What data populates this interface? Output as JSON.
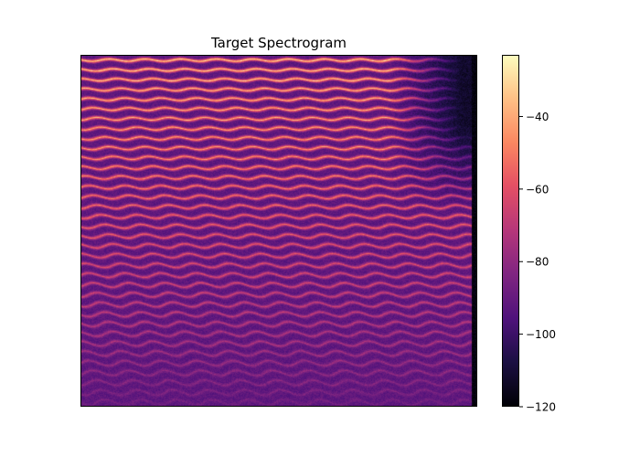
{
  "chart_data": {
    "type": "heatmap",
    "title": "Target Spectrogram",
    "xlabel": "",
    "ylabel": "",
    "colormap": "magma",
    "colorbar": {
      "range": [
        -120,
        -23
      ],
      "ticks": [
        {
          "value": -40,
          "label": "−40"
        },
        {
          "value": -60,
          "label": "−60"
        },
        {
          "value": -80,
          "label": "−80"
        },
        {
          "value": -100,
          "label": "−100"
        },
        {
          "value": -120,
          "label": "−120"
        }
      ]
    },
    "x_ticks_shown": false,
    "y_ticks_shown": false,
    "grid": false,
    "harmonic_bands": 36,
    "background_level": -92,
    "low_band_peak_level": -28,
    "high_band_peak_level": -88,
    "high_frequency_late_level": -112
  }
}
